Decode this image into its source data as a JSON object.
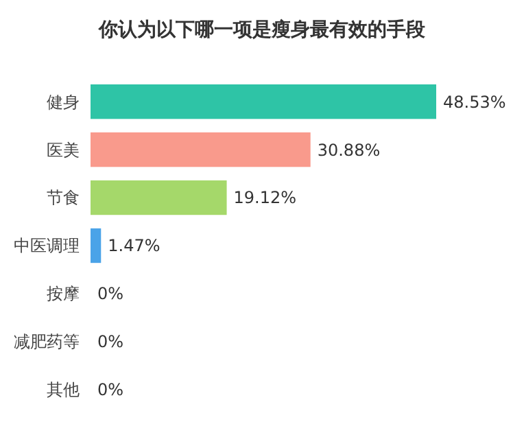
{
  "chart_data": {
    "type": "bar",
    "orientation": "horizontal",
    "title": "你认为以下哪一项是瘦身最有效的手段",
    "categories": [
      "健身",
      "医美",
      "节食",
      "中医调理",
      "按摩",
      "减肥药等",
      "其他"
    ],
    "values": [
      48.53,
      30.88,
      19.12,
      1.47,
      0,
      0,
      0
    ],
    "colors": [
      "#2ec4a6",
      "#f99a8c",
      "#a5d86a",
      "#4aa3e8",
      "#4aa3e8",
      "#4aa3e8",
      "#4aa3e8"
    ],
    "value_labels": [
      "48.53%",
      "30.88%",
      "19.12%",
      "1.47%",
      "0%",
      "0%",
      "0%"
    ]
  }
}
